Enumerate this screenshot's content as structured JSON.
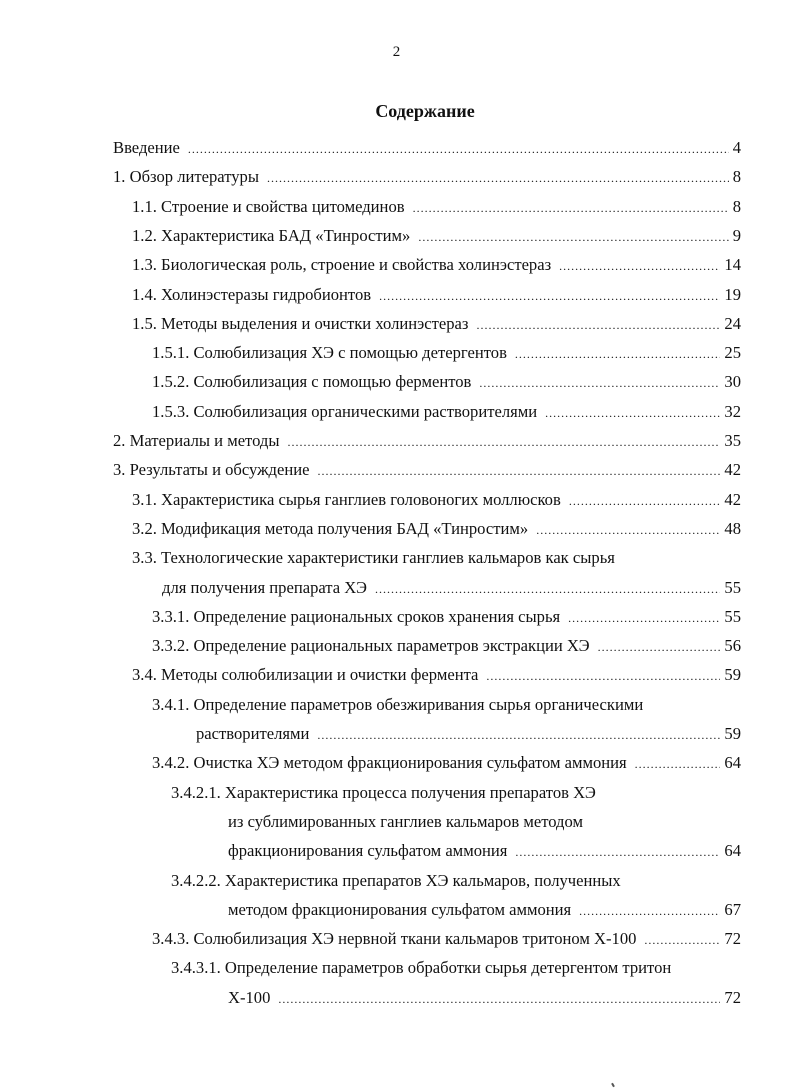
{
  "page_number": "2",
  "title": "Содержание",
  "entries": [
    {
      "level": 0,
      "lines": [
        "Введение"
      ],
      "page": "4"
    },
    {
      "level": 0,
      "lines": [
        "1. Обзор литературы"
      ],
      "page": "8"
    },
    {
      "level": 1,
      "lines": [
        "1.1. Строение и свойства цитомединов"
      ],
      "page": "8"
    },
    {
      "level": 1,
      "lines": [
        "1.2. Характеристика БАД «Тинростим»"
      ],
      "page": "9"
    },
    {
      "level": 1,
      "lines": [
        "1.3. Биологическая роль, строение и свойства холинэстераз"
      ],
      "page": "14"
    },
    {
      "level": 1,
      "lines": [
        "1.4. Холинэстеразы гидробионтов"
      ],
      "page": "19"
    },
    {
      "level": 1,
      "lines": [
        "1.5. Методы выделения и очистки холинэстераз"
      ],
      "page": "24"
    },
    {
      "level": 2,
      "lines": [
        "1.5.1. Солюбилизация ХЭ с помощью детергентов"
      ],
      "page": "25"
    },
    {
      "level": 2,
      "lines": [
        "1.5.2. Солюбилизация с помощью ферментов"
      ],
      "page": "30"
    },
    {
      "level": 2,
      "lines": [
        "1.5.3. Солюбилизация органическими растворителями"
      ],
      "page": "32"
    },
    {
      "level": 0,
      "lines": [
        "2. Материалы и методы"
      ],
      "page": "35"
    },
    {
      "level": 0,
      "lines": [
        "3. Результаты и обсуждение"
      ],
      "page": "42"
    },
    {
      "level": 1,
      "lines": [
        "3.1. Характеристика сырья ганглиев головоногих моллюсков"
      ],
      "page": "42"
    },
    {
      "level": 1,
      "lines": [
        "3.2. Модификация метода получения БАД «Тинростим»"
      ],
      "page": "48"
    },
    {
      "level": 1,
      "lines": [
        "3.3. Технологические характеристики ганглиев кальмаров как сырья",
        "для получения препарата ХЭ"
      ],
      "page": "55"
    },
    {
      "level": 2,
      "lines": [
        "3.3.1. Определение рациональных сроков хранения сырья"
      ],
      "page": "55"
    },
    {
      "level": 2,
      "lines": [
        "3.3.2. Определение рациональных параметров экстракции ХЭ"
      ],
      "page": "56"
    },
    {
      "level": 1,
      "lines": [
        "3.4. Методы солюбилизации и очистки фермента"
      ],
      "page": "59"
    },
    {
      "level": 2,
      "lines": [
        "3.4.1. Определение параметров обезжиривания сырья органическими",
        "растворителями"
      ],
      "page": "59"
    },
    {
      "level": 2,
      "lines": [
        "3.4.2. Очистка ХЭ методом фракционирования сульфатом аммония"
      ],
      "page": "64"
    },
    {
      "level": 3,
      "lines": [
        "3.4.2.1. Характеристика процесса получения препаратов ХЭ",
        "из сублимированных ганглиев кальмаров методом",
        "фракционирования сульфатом аммония"
      ],
      "page": "64"
    },
    {
      "level": 3,
      "lines": [
        "3.4.2.2. Характеристика препаратов ХЭ кальмаров, полученных",
        "методом фракционирования сульфатом аммония"
      ],
      "page": "67"
    },
    {
      "level": 2,
      "lines": [
        "3.4.3. Солюбилизация ХЭ нервной ткани кальмаров тритоном Х-100"
      ],
      "page": "72"
    },
    {
      "level": 3,
      "lines": [
        "3.4.3.1. Определение параметров обработки сырья детергентом тритон",
        "Х-100"
      ],
      "page": "72"
    }
  ]
}
